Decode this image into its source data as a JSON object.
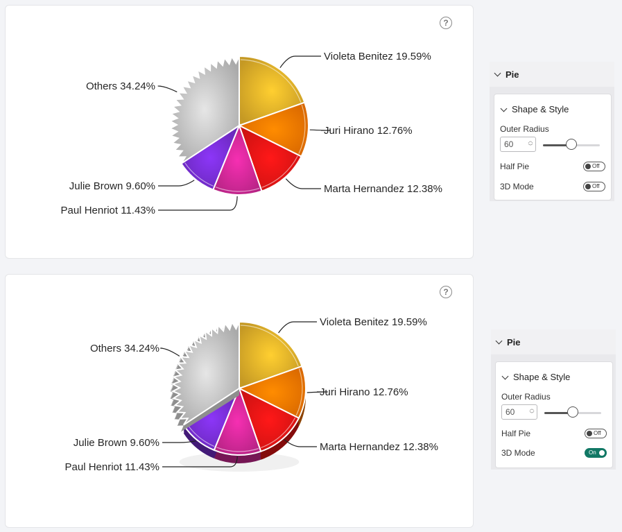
{
  "chart_data": [
    {
      "type": "pie",
      "mode": "2d",
      "slices": [
        {
          "label": "Violeta Benitez",
          "pct": "19.59%",
          "value": 19.59,
          "color": "#E8B42A"
        },
        {
          "label": "Juri Hirano",
          "pct": "12.76%",
          "value": 12.76,
          "color": "#FF7A00"
        },
        {
          "label": "Marta Hernandez",
          "pct": "12.38%",
          "value": 12.38,
          "color": "#F01515"
        },
        {
          "label": "Paul Henriot",
          "pct": "11.43%",
          "value": 11.43,
          "color": "#D6299B"
        },
        {
          "label": "Julie Brown",
          "pct": "9.60%",
          "value": 9.6,
          "color": "#7A2FD8"
        },
        {
          "label": "Others",
          "pct": "34.24%",
          "value": 34.24,
          "color": "#C8C8C8"
        }
      ]
    },
    {
      "type": "pie",
      "mode": "3d",
      "slices": [
        {
          "label": "Violeta Benitez",
          "pct": "19.59%",
          "value": 19.59,
          "color": "#E8B42A"
        },
        {
          "label": "Juri Hirano",
          "pct": "12.76%",
          "value": 12.76,
          "color": "#FF7A00"
        },
        {
          "label": "Marta Hernandez",
          "pct": "12.38%",
          "value": 12.38,
          "color": "#F01515"
        },
        {
          "label": "Paul Henriot",
          "pct": "11.43%",
          "value": 11.43,
          "color": "#D6299B"
        },
        {
          "label": "Julie Brown",
          "pct": "9.60%",
          "value": 9.6,
          "color": "#7A2FD8"
        },
        {
          "label": "Others",
          "pct": "34.24%",
          "value": 34.24,
          "color": "#C8C8C8"
        }
      ]
    }
  ],
  "help_glyph": "?",
  "panels": [
    {
      "title": "Pie",
      "section": "Shape & Style",
      "outer_radius_label": "Outer Radius",
      "outer_radius_value": "60",
      "slider_fraction": 0.5,
      "half_pie_label": "Half Pie",
      "half_pie_state": "Off",
      "mode_3d_label": "3D Mode",
      "mode_3d_state": "Off"
    },
    {
      "title": "Pie",
      "section": "Shape & Style",
      "outer_radius_label": "Outer Radius",
      "outer_radius_value": "60",
      "slider_fraction": 0.5,
      "half_pie_label": "Half Pie",
      "half_pie_state": "Off",
      "mode_3d_label": "3D Mode",
      "mode_3d_state": "On"
    }
  ]
}
